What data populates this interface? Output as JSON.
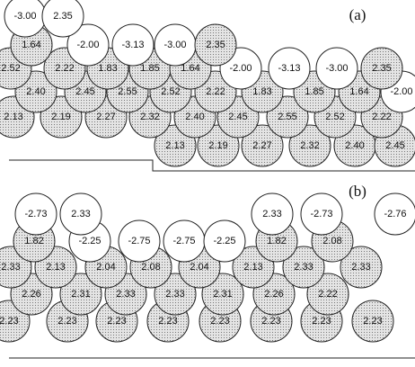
{
  "panels": [
    {
      "label": "(a)",
      "rows": [
        [
          "-3.00",
          "2.35"
        ],
        [
          "1.64",
          "-2.00",
          "-3.13",
          "-3.00",
          "2.35"
        ],
        [
          "2.52",
          "2.22",
          "1.83",
          "1.85",
          "1.64",
          "-2.00",
          "-3.13",
          "-3.00",
          "2.35"
        ],
        [
          "2.40",
          "2.45",
          "2.55",
          "2.52",
          "2.22",
          "1.83",
          "1.85",
          "1.64",
          "-2.00"
        ],
        [
          "2.13",
          "2.19",
          "2.27",
          "2.32",
          "2.40",
          "2.45",
          "2.55",
          "2.52",
          "2.22"
        ],
        [
          "2.13",
          "2.19",
          "2.27",
          "2.32",
          "2.40",
          "2.45"
        ]
      ]
    },
    {
      "label": "(b)",
      "rows": [
        [
          "-2.73",
          "2.33",
          "2.33",
          "-2.73",
          "-2.76"
        ],
        [
          "1.82",
          "-2.25",
          "-2.75",
          "-2.75",
          "-2.25",
          "1.82",
          "2.08"
        ],
        [
          "2.33",
          "2.13",
          "2.04",
          "2.08",
          "2.04",
          "2.13",
          "2.33",
          "2.33"
        ],
        [
          "2.26",
          "2.31",
          "2.33",
          "2.33",
          "2.31",
          "2.26",
          "2.22"
        ],
        [
          "2.23",
          "2.23",
          "2.23",
          "2.23",
          "2.23",
          "2.23",
          "2.23",
          "2.23"
        ]
      ]
    }
  ]
}
